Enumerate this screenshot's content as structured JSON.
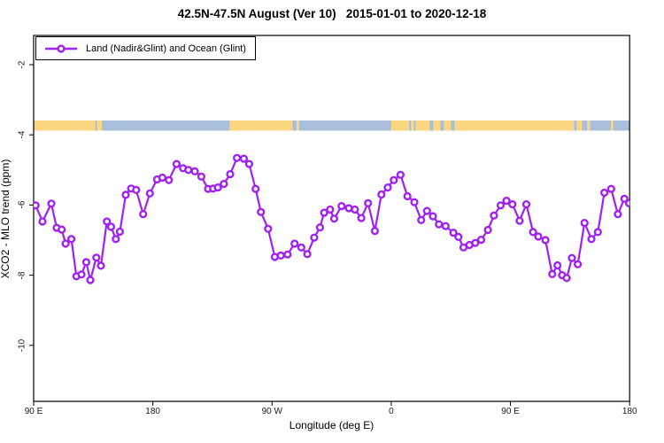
{
  "title": "42.5N-47.5N August (Ver 10)   2015-01-01 to 2020-12-18",
  "legend": {
    "label": "Land (Nadir&Glint) and Ocean (Glint)",
    "line_color": "#A021F0",
    "marker": "open-circle"
  },
  "map_strip": {
    "description": "land/ocean strip drawn across plot near y=-3.7",
    "land_color": "#FBD782",
    "ocean_color": "#A9BEDB",
    "top_value": -3.59,
    "bottom_value": -3.88,
    "segments": [
      {
        "from": 90,
        "to": 136.5,
        "type": "land"
      },
      {
        "from": 136.5,
        "to": 138,
        "type": "ocean"
      },
      {
        "from": 138,
        "to": 141.5,
        "type": "land"
      },
      {
        "from": 141.5,
        "to": 238,
        "type": "ocean"
      },
      {
        "from": 238,
        "to": 285.5,
        "type": "land"
      },
      {
        "from": 285.5,
        "to": 288.5,
        "type": "ocean"
      },
      {
        "from": 288.5,
        "to": 290.5,
        "type": "land"
      },
      {
        "from": 290.5,
        "to": 360,
        "type": "ocean"
      },
      {
        "from": 360,
        "to": 373.5,
        "type": "land"
      },
      {
        "from": 373.5,
        "to": 375,
        "type": "ocean"
      },
      {
        "from": 375,
        "to": 377,
        "type": "land"
      },
      {
        "from": 377,
        "to": 378.5,
        "type": "ocean"
      },
      {
        "from": 378.5,
        "to": 389,
        "type": "land"
      },
      {
        "from": 389,
        "to": 392,
        "type": "ocean"
      },
      {
        "from": 392,
        "to": 397,
        "type": "land"
      },
      {
        "from": 397,
        "to": 400,
        "type": "ocean"
      },
      {
        "from": 400,
        "to": 405,
        "type": "land"
      },
      {
        "from": 405,
        "to": 408,
        "type": "ocean"
      },
      {
        "from": 408,
        "to": 498,
        "type": "land"
      },
      {
        "from": 498,
        "to": 500,
        "type": "ocean"
      },
      {
        "from": 500,
        "to": 504,
        "type": "land"
      },
      {
        "from": 504,
        "to": 508,
        "type": "ocean"
      },
      {
        "from": 508,
        "to": 510,
        "type": "land"
      },
      {
        "from": 510,
        "to": 526,
        "type": "ocean"
      },
      {
        "from": 526,
        "to": 527.5,
        "type": "land"
      },
      {
        "from": 527.5,
        "to": 540,
        "type": "ocean"
      }
    ]
  },
  "chart_data": {
    "type": "line",
    "title": "42.5N-47.5N August (Ver 10)   2015-01-01 to 2020-12-18",
    "xlabel": "Longitude (deg E)",
    "ylabel": "XCO2 - MLO trend (ppm)",
    "axis_note": "x axis wraps eastward from 90E through 180, 90W, 0, 90E to 180 (axis_deg 90..540)",
    "xlim_axis_deg": [
      90,
      540
    ],
    "ylim": [
      -11.6,
      -1.17
    ],
    "grid": false,
    "legend_position": "top-left-inside",
    "x_ticks": [
      {
        "axis_deg": 90,
        "label": "90 E"
      },
      {
        "axis_deg": 180,
        "label": "180"
      },
      {
        "axis_deg": 270,
        "label": "90 W"
      },
      {
        "axis_deg": 360,
        "label": "0"
      },
      {
        "axis_deg": 450,
        "label": "90 E"
      },
      {
        "axis_deg": 540,
        "label": "180"
      }
    ],
    "y_ticks": [
      {
        "value": -2,
        "label": "-2"
      },
      {
        "value": -4,
        "label": "-4"
      },
      {
        "value": -6,
        "label": "-6"
      },
      {
        "value": -8,
        "label": "-8"
      },
      {
        "value": -10,
        "label": "-10"
      }
    ],
    "series": [
      {
        "name": "Land (Nadir&Glint) and Ocean (Glint)",
        "color": "#A021F0",
        "marker": "open-circle",
        "points": [
          [
            91.5,
            -6.01
          ],
          [
            96.7,
            -6.47
          ],
          [
            103.4,
            -5.96
          ],
          [
            107.4,
            -6.65
          ],
          [
            111.2,
            -6.7
          ],
          [
            114.1,
            -7.1
          ],
          [
            118.5,
            -6.97
          ],
          [
            122.3,
            -8.03
          ],
          [
            126.1,
            -7.98
          ],
          [
            129.7,
            -7.63
          ],
          [
            132.8,
            -8.14
          ],
          [
            137.3,
            -7.5
          ],
          [
            140.8,
            -7.73
          ],
          [
            145.3,
            -6.47
          ],
          [
            148.4,
            -6.62
          ],
          [
            152.0,
            -6.97
          ],
          [
            155.1,
            -6.76
          ],
          [
            159.5,
            -5.71
          ],
          [
            163.6,
            -5.53
          ],
          [
            167.4,
            -5.57
          ],
          [
            172.7,
            -6.26
          ],
          [
            177.8,
            -5.67
          ],
          [
            183.2,
            -5.27
          ],
          [
            187.2,
            -5.22
          ],
          [
            192.1,
            -5.29
          ],
          [
            197.9,
            -4.83
          ],
          [
            202.8,
            -4.95
          ],
          [
            206.8,
            -5.0
          ],
          [
            211.7,
            -5.04
          ],
          [
            216.6,
            -5.19
          ],
          [
            221.7,
            -5.54
          ],
          [
            225.5,
            -5.53
          ],
          [
            229.1,
            -5.5
          ],
          [
            233.6,
            -5.4
          ],
          [
            238.4,
            -5.12
          ],
          [
            243.5,
            -4.66
          ],
          [
            248.7,
            -4.68
          ],
          [
            252.7,
            -4.83
          ],
          [
            257.6,
            -5.54
          ],
          [
            261.6,
            -6.2
          ],
          [
            267.0,
            -6.68
          ],
          [
            272.1,
            -7.48
          ],
          [
            276.6,
            -7.44
          ],
          [
            281.7,
            -7.41
          ],
          [
            287.0,
            -7.1
          ],
          [
            292.1,
            -7.21
          ],
          [
            296.6,
            -7.4
          ],
          [
            301.8,
            -6.93
          ],
          [
            306.2,
            -6.64
          ],
          [
            309.3,
            -6.22
          ],
          [
            313.8,
            -6.13
          ],
          [
            316.9,
            -6.39
          ],
          [
            322.5,
            -6.03
          ],
          [
            328.0,
            -6.09
          ],
          [
            332.5,
            -6.13
          ],
          [
            337.4,
            -6.37
          ],
          [
            342.5,
            -5.95
          ],
          [
            347.6,
            -6.74
          ],
          [
            352.6,
            -5.7
          ],
          [
            357.4,
            -5.5
          ],
          [
            361.9,
            -5.29
          ],
          [
            367.0,
            -5.14
          ],
          [
            372.2,
            -5.75
          ],
          [
            377.4,
            -5.92
          ],
          [
            382.6,
            -6.43
          ],
          [
            387.0,
            -6.17
          ],
          [
            391.5,
            -6.32
          ],
          [
            396.0,
            -6.55
          ],
          [
            401.0,
            -6.6
          ],
          [
            406.9,
            -6.79
          ],
          [
            410.7,
            -6.91
          ],
          [
            414.5,
            -7.21
          ],
          [
            419.0,
            -7.14
          ],
          [
            423.4,
            -7.08
          ],
          [
            427.9,
            -6.99
          ],
          [
            433.0,
            -6.71
          ],
          [
            437.5,
            -6.3
          ],
          [
            442.6,
            -6.01
          ],
          [
            447.0,
            -5.88
          ],
          [
            451.5,
            -5.98
          ],
          [
            456.9,
            -6.45
          ],
          [
            462.0,
            -5.98
          ],
          [
            467.1,
            -6.77
          ],
          [
            471.0,
            -6.9
          ],
          [
            476.4,
            -7.0
          ],
          [
            481.5,
            -7.97
          ],
          [
            485.5,
            -7.72
          ],
          [
            489.0,
            -8.0
          ],
          [
            492.5,
            -8.08
          ],
          [
            496.4,
            -7.51
          ],
          [
            500.8,
            -7.69
          ],
          [
            505.9,
            -6.51
          ],
          [
            511.1,
            -6.97
          ],
          [
            516.0,
            -6.77
          ],
          [
            520.9,
            -5.65
          ],
          [
            526.0,
            -5.54
          ],
          [
            531.1,
            -6.26
          ],
          [
            536.0,
            -5.82
          ],
          [
            539.5,
            -5.95
          ]
        ]
      }
    ]
  }
}
